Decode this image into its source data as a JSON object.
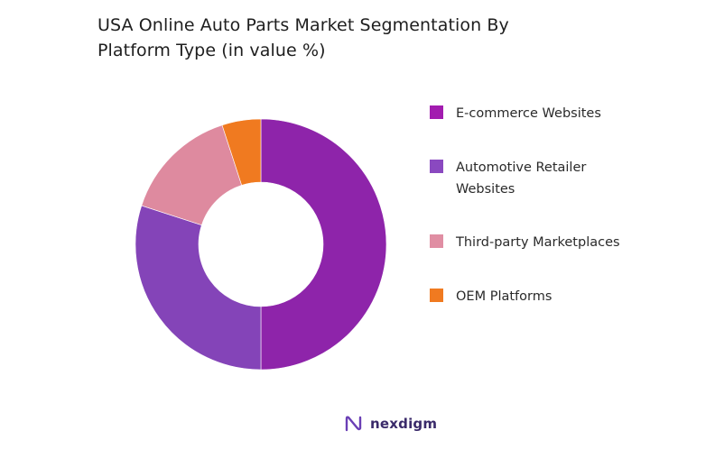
{
  "title_line1": "USA Online Auto Parts Market Segmentation By",
  "title_line2": "Platform Type (in value %)",
  "chart_data": {
    "type": "pie",
    "donut": true,
    "title": "USA Online Auto Parts Market Segmentation By Platform Type (in value %)",
    "legend_position": "right",
    "categories": [
      "E-commerce Websites",
      "Automotive Retailer Websites",
      "Third-party Marketplaces",
      "OEM Platforms"
    ],
    "values": [
      50,
      30,
      15,
      5
    ],
    "colors": [
      "#8e24aa",
      "#8444b8",
      "#de8a9f",
      "#f07a20"
    ]
  },
  "legend": [
    {
      "label": "E-commerce Websites",
      "color": "#a21caf"
    },
    {
      "label": "Automotive Retailer Websites",
      "color": "#8a49c0"
    },
    {
      "label": "Third-party Marketplaces",
      "color": "#e08ea3"
    },
    {
      "label": "OEM Platforms",
      "color": "#f07a20"
    }
  ],
  "brand": {
    "name": "nexdigm",
    "logo_icon": "nexdigm-logo-icon"
  }
}
